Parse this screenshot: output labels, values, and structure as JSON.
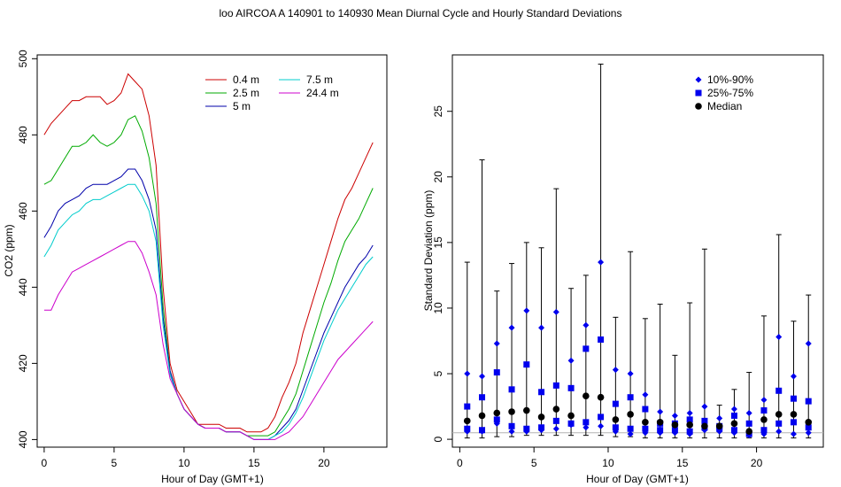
{
  "figure": {
    "title": "loo   AIRCOA A   140901 to 140930   Mean Diurnal Cycle and Hourly Standard Deviations"
  },
  "chart_data": [
    {
      "type": "line",
      "xlabel": "Hour of Day (GMT+1)",
      "ylabel": "CO2 (ppm)",
      "xlim": [
        -0.5,
        24.5
      ],
      "ylim": [
        398,
        501
      ],
      "xticks": [
        0,
        5,
        10,
        15,
        20
      ],
      "yticks": [
        400,
        420,
        440,
        460,
        480,
        500
      ],
      "grid": false,
      "legend_position": "top-center",
      "legend_columns": 2,
      "x": [
        0,
        0.5,
        1,
        1.5,
        2,
        2.5,
        3,
        3.5,
        4,
        4.5,
        5,
        5.5,
        6,
        6.5,
        7,
        7.5,
        8,
        8.5,
        9,
        9.5,
        10,
        10.5,
        11,
        11.5,
        12,
        12.5,
        13,
        13.5,
        14,
        14.5,
        15,
        15.5,
        16,
        16.5,
        17,
        17.5,
        18,
        18.5,
        19,
        19.5,
        20,
        20.5,
        21,
        21.5,
        22,
        22.5,
        23,
        23.5
      ],
      "series": [
        {
          "name": "0.4 m",
          "color": "#cc0000",
          "values": [
            480,
            483,
            485,
            487,
            489,
            489,
            490,
            490,
            490,
            488,
            489,
            491,
            496,
            494,
            492,
            485,
            472,
            440,
            420,
            413,
            410,
            407,
            404,
            404,
            404,
            404,
            403,
            403,
            403,
            402,
            402,
            402,
            403,
            406,
            411,
            415,
            420,
            428,
            434,
            440,
            446,
            452,
            458,
            463,
            466,
            470,
            474,
            478
          ]
        },
        {
          "name": "2.5 m",
          "color": "#00aa00",
          "values": [
            467,
            468,
            471,
            474,
            477,
            477,
            478,
            480,
            478,
            477,
            478,
            480,
            484,
            485,
            481,
            474,
            462,
            435,
            418,
            412,
            408,
            406,
            404,
            403,
            403,
            403,
            402,
            402,
            402,
            401,
            401,
            401,
            401,
            402,
            405,
            408,
            412,
            418,
            424,
            430,
            436,
            441,
            447,
            452,
            455,
            458,
            462,
            466
          ]
        },
        {
          "name": "5 m",
          "color": "#0000aa",
          "values": [
            453,
            456,
            460,
            462,
            463,
            464,
            466,
            467,
            467,
            467,
            468,
            469,
            471,
            471,
            468,
            463,
            455,
            432,
            418,
            412,
            408,
            406,
            404,
            403,
            403,
            403,
            402,
            402,
            402,
            401,
            400,
            400,
            400,
            401,
            403,
            405,
            408,
            413,
            418,
            423,
            428,
            432,
            436,
            440,
            443,
            446,
            448,
            451
          ]
        },
        {
          "name": "7.5 m",
          "color": "#00cccc",
          "values": [
            448,
            451,
            455,
            457,
            459,
            460,
            462,
            463,
            463,
            464,
            465,
            466,
            467,
            467,
            464,
            460,
            452,
            430,
            417,
            412,
            408,
            406,
            404,
            403,
            403,
            403,
            402,
            402,
            402,
            401,
            400,
            400,
            400,
            401,
            402,
            404,
            407,
            411,
            416,
            421,
            426,
            430,
            434,
            437,
            440,
            443,
            446,
            448
          ]
        },
        {
          "name": "24.4 m",
          "color": "#cc00cc",
          "values": [
            434,
            434,
            438,
            441,
            444,
            445,
            446,
            447,
            448,
            449,
            450,
            451,
            452,
            452,
            449,
            444,
            438,
            425,
            416,
            412,
            408,
            406,
            404,
            403,
            403,
            403,
            402,
            402,
            402,
            401,
            400,
            400,
            400,
            400,
            401,
            402,
            404,
            406,
            409,
            412,
            415,
            418,
            421,
            423,
            425,
            427,
            429,
            431
          ]
        }
      ]
    },
    {
      "type": "scatter",
      "xlabel": "Hour of Day (GMT+1)",
      "ylabel": "Standard Deviation (ppm)",
      "xlim": [
        -0.5,
        24.5
      ],
      "ylim": [
        -0.6,
        29.3
      ],
      "xticks": [
        0,
        5,
        10,
        15,
        20
      ],
      "yticks": [
        0,
        5,
        10,
        15,
        20,
        25
      ],
      "grid": false,
      "reference_line": 0.5,
      "legend_position": "top-right",
      "legend": [
        {
          "label": "10%-90%",
          "marker": "diamond",
          "color": "#0000ee"
        },
        {
          "label": "25%-75%",
          "marker": "square",
          "color": "#0000ee"
        },
        {
          "label": "Median",
          "marker": "circle",
          "color": "#000000"
        }
      ],
      "x": [
        0.5,
        1.5,
        2.5,
        3.5,
        4.5,
        5.5,
        6.5,
        7.5,
        8.5,
        9.5,
        10.5,
        11.5,
        12.5,
        13.5,
        14.5,
        15.5,
        16.5,
        17.5,
        18.5,
        19.5,
        20.5,
        21.5,
        22.5,
        23.5
      ],
      "series": [
        {
          "name": "whisker_low",
          "values": [
            0.1,
            0.1,
            0.2,
            0.2,
            0.3,
            0.3,
            0.3,
            0.3,
            0.3,
            0.3,
            0.2,
            0.2,
            0.1,
            0.1,
            0.1,
            0.1,
            0.1,
            0.1,
            0.1,
            0.1,
            0.1,
            0.1,
            0.1,
            0.1
          ]
        },
        {
          "name": "whisker_high",
          "values": [
            13.5,
            21.3,
            11.3,
            13.4,
            15.0,
            14.6,
            19.1,
            11.5,
            12.5,
            28.6,
            9.3,
            14.3,
            9.2,
            10.3,
            6.4,
            10.4,
            14.5,
            2.6,
            3.8,
            5.1,
            9.4,
            15.6,
            9.0,
            11.0
          ]
        },
        {
          "name": "10%-90% low",
          "values": [
            0.6,
            0.6,
            1.2,
            0.6,
            0.6,
            0.7,
            0.8,
            1.1,
            0.9,
            1.0,
            0.6,
            0.4,
            0.5,
            0.5,
            0.5,
            0.4,
            0.7,
            0.6,
            0.5,
            0.3,
            0.4,
            0.6,
            0.4,
            0.5
          ]
        },
        {
          "name": "10%-90% high",
          "values": [
            5.0,
            4.8,
            7.3,
            8.5,
            9.8,
            8.5,
            9.7,
            6.0,
            8.7,
            13.5,
            5.3,
            5.0,
            3.4,
            2.1,
            1.8,
            2.0,
            2.5,
            1.6,
            2.3,
            2.0,
            3.0,
            7.8,
            4.8,
            7.3
          ]
        },
        {
          "name": "25%-75% low",
          "values": [
            0.8,
            0.7,
            1.5,
            1.0,
            0.8,
            0.9,
            1.4,
            1.2,
            1.3,
            1.7,
            0.9,
            0.8,
            0.8,
            0.7,
            0.7,
            0.6,
            0.9,
            0.8,
            0.7,
            0.4,
            0.7,
            1.2,
            1.3,
            0.9
          ]
        },
        {
          "name": "25%-75% high",
          "values": [
            2.5,
            3.2,
            5.1,
            3.8,
            5.7,
            3.6,
            4.1,
            3.9,
            6.9,
            7.6,
            2.7,
            3.2,
            2.3,
            1.2,
            1.2,
            1.5,
            1.4,
            1.0,
            1.8,
            1.2,
            2.2,
            3.7,
            3.1,
            2.9
          ]
        },
        {
          "name": "Median",
          "values": [
            1.4,
            1.8,
            2.0,
            2.1,
            2.2,
            1.7,
            2.3,
            1.8,
            3.3,
            3.2,
            1.5,
            1.9,
            1.3,
            1.3,
            1.1,
            1.1,
            1.0,
            1.0,
            1.2,
            0.6,
            1.5,
            1.9,
            1.9,
            1.3
          ]
        }
      ]
    }
  ]
}
